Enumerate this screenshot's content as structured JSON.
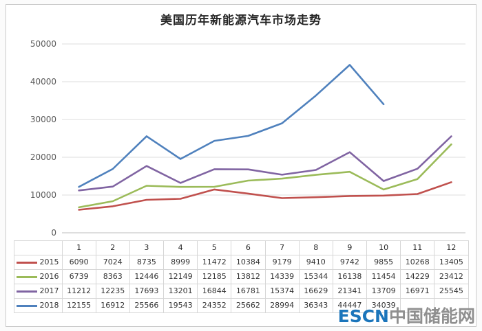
{
  "title": "美国历年新能源汽车市场走势",
  "watermark": {
    "left": "ESCN",
    "right": "中国储能网"
  },
  "chart_data": {
    "type": "line",
    "title": "美国历年新能源汽车市场走势",
    "x": [
      1,
      2,
      3,
      4,
      5,
      6,
      7,
      8,
      9,
      10,
      11,
      12
    ],
    "xlabel": "",
    "ylabel": "",
    "ylim": [
      0,
      50000
    ],
    "yticks": [
      0,
      10000,
      20000,
      30000,
      40000,
      50000
    ],
    "grid": true,
    "legend_position": "table-left",
    "series": [
      {
        "name": "2015",
        "color": "#c0504d",
        "values": [
          6090,
          7024,
          8735,
          8999,
          11472,
          10384,
          9179,
          9410,
          9742,
          9855,
          10268,
          13405
        ]
      },
      {
        "name": "2016",
        "color": "#9bbb59",
        "values": [
          6739,
          8363,
          12446,
          12149,
          12185,
          13812,
          14339,
          15344,
          16138,
          11454,
          14229,
          23412
        ]
      },
      {
        "name": "2017",
        "color": "#8064a2",
        "values": [
          11212,
          12235,
          17693,
          13201,
          16844,
          16781,
          15374,
          16629,
          21341,
          13709,
          16971,
          25545
        ]
      },
      {
        "name": "2018",
        "color": "#4f81bd",
        "values": [
          12155,
          16912,
          25566,
          19543,
          24352,
          25662,
          28994,
          36343,
          44447,
          34039,
          null,
          null
        ]
      }
    ]
  }
}
